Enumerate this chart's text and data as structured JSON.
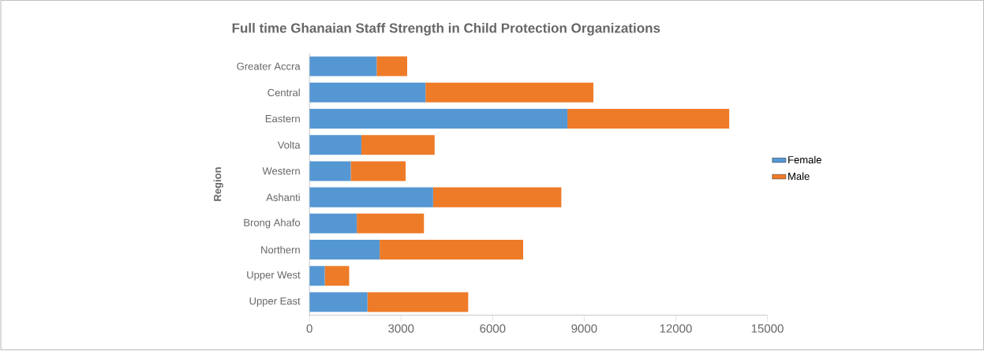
{
  "chart_data": {
    "type": "bar",
    "orientation": "horizontal",
    "stacked": true,
    "title": "Full time Ghanaian Staff Strength in Child Protection Organizations",
    "ylabel": "Region",
    "categories": [
      "Greater Accra",
      "Central",
      "Eastern",
      "Volta",
      "Western",
      "Ashanti",
      "Brong Ahafo",
      "Northern",
      "Upper West",
      "Upper East"
    ],
    "series": [
      {
        "name": "Female",
        "color": "#5597d3",
        "values": [
          2200,
          3800,
          8450,
          1700,
          1350,
          4050,
          1550,
          2300,
          500,
          1900
        ]
      },
      {
        "name": "Male",
        "color": "#ee7b28",
        "values": [
          1000,
          5500,
          5300,
          2400,
          1800,
          4200,
          2200,
          4700,
          800,
          3300
        ]
      }
    ],
    "xlim": [
      0,
      15000
    ],
    "xticks": [
      0,
      3000,
      6000,
      9000,
      12000,
      15000
    ],
    "legend": "right"
  }
}
